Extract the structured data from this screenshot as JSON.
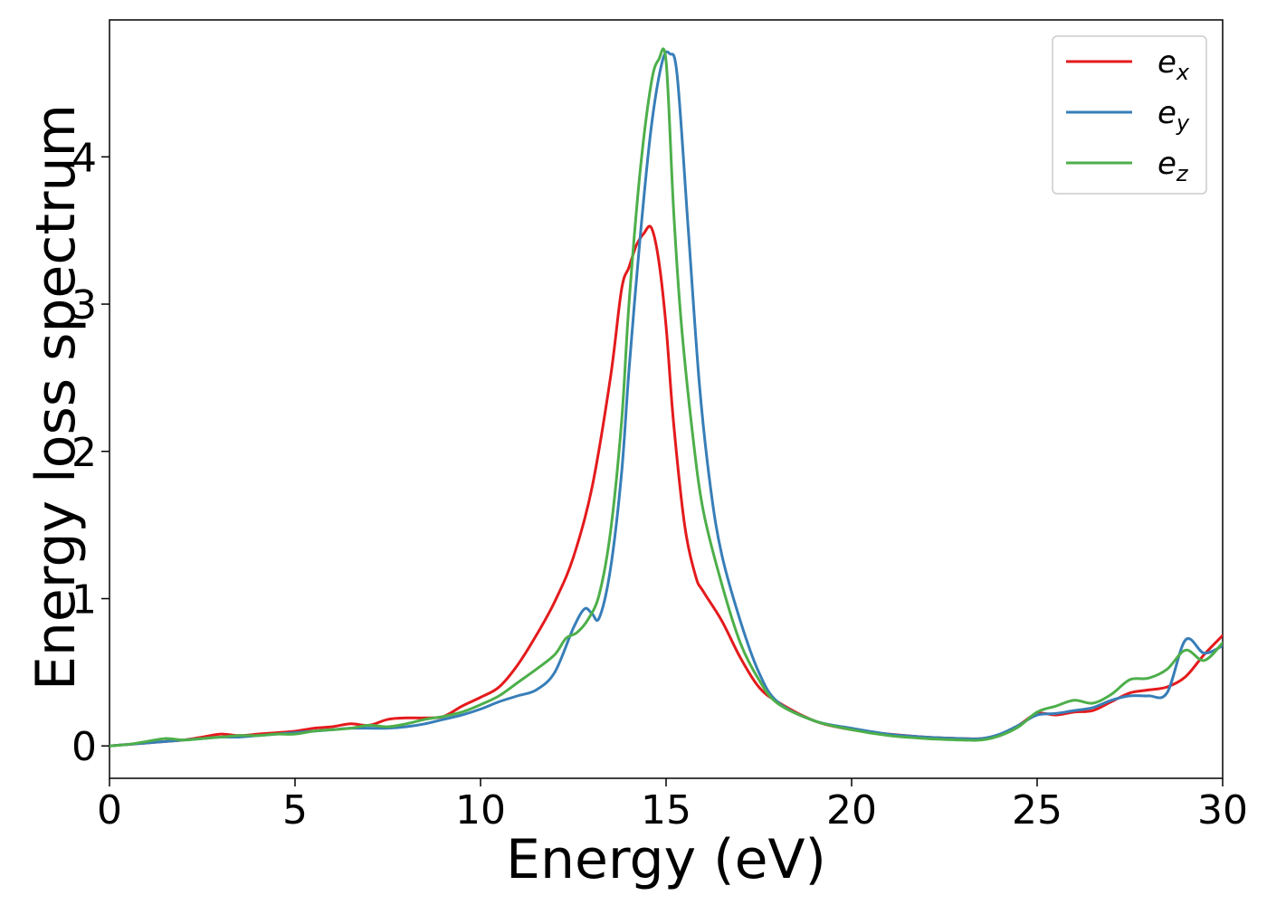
{
  "chart_data": {
    "type": "line",
    "title": "",
    "xlabel": "Energy (eV)",
    "ylabel": "Energy loss spectrum",
    "xlim": [
      0,
      30
    ],
    "ylim": [
      -0.22,
      4.93
    ],
    "xticks": [
      0,
      5,
      10,
      15,
      20,
      25,
      30
    ],
    "yticks": [
      0,
      1,
      2,
      3,
      4
    ],
    "grid": false,
    "legend_position": "top-right",
    "series": [
      {
        "name": "e_x",
        "label_main": "e",
        "label_sub": "x",
        "color": "#e41a1c",
        "x": [
          0,
          0.5,
          1,
          1.5,
          2,
          2.5,
          3,
          3.5,
          4,
          4.5,
          5,
          5.5,
          6,
          6.5,
          7,
          7.5,
          8,
          8.5,
          9,
          9.5,
          10,
          10.5,
          11,
          11.5,
          12,
          12.5,
          13,
          13.5,
          13.8,
          14,
          14.2,
          14.4,
          14.6,
          14.8,
          15,
          15.2,
          15.5,
          15.8,
          16,
          16.5,
          17,
          17.5,
          18,
          19,
          20,
          21,
          22,
          23,
          23.5,
          24,
          24.5,
          25,
          25.5,
          26,
          26.5,
          27,
          27.5,
          28,
          28.5,
          29,
          29.5,
          30
        ],
        "y": [
          0.0,
          0.01,
          0.02,
          0.03,
          0.04,
          0.06,
          0.08,
          0.07,
          0.08,
          0.09,
          0.1,
          0.12,
          0.13,
          0.15,
          0.14,
          0.18,
          0.19,
          0.19,
          0.2,
          0.27,
          0.33,
          0.4,
          0.55,
          0.75,
          0.98,
          1.28,
          1.75,
          2.5,
          3.1,
          3.25,
          3.4,
          3.48,
          3.52,
          3.3,
          2.85,
          2.2,
          1.5,
          1.15,
          1.05,
          0.85,
          0.6,
          0.4,
          0.3,
          0.17,
          0.11,
          0.08,
          0.06,
          0.05,
          0.05,
          0.07,
          0.14,
          0.22,
          0.21,
          0.23,
          0.24,
          0.3,
          0.36,
          0.38,
          0.4,
          0.47,
          0.62,
          0.75
        ]
      },
      {
        "name": "e_y",
        "label_main": "e",
        "label_sub": "y",
        "color": "#377eb8",
        "x": [
          0,
          0.5,
          1,
          1.5,
          2,
          2.5,
          3,
          3.5,
          4,
          4.5,
          5,
          5.5,
          6,
          6.5,
          7,
          7.5,
          8,
          8.5,
          9,
          9.5,
          10,
          10.5,
          11,
          11.5,
          12,
          12.5,
          12.8,
          13,
          13.2,
          13.5,
          13.8,
          14,
          14.3,
          14.6,
          14.9,
          15.1,
          15.3,
          15.6,
          15.9,
          16.2,
          16.5,
          17,
          17.5,
          18,
          19,
          20,
          21,
          22,
          23,
          23.5,
          24,
          24.5,
          25,
          25.5,
          26,
          26.5,
          27,
          27.5,
          28,
          28.5,
          29,
          29.5,
          30
        ],
        "y": [
          0.0,
          0.01,
          0.02,
          0.03,
          0.04,
          0.05,
          0.06,
          0.06,
          0.07,
          0.08,
          0.09,
          0.1,
          0.11,
          0.12,
          0.12,
          0.12,
          0.13,
          0.15,
          0.18,
          0.21,
          0.25,
          0.3,
          0.34,
          0.38,
          0.5,
          0.8,
          0.93,
          0.9,
          0.87,
          1.2,
          1.85,
          2.55,
          3.45,
          4.2,
          4.65,
          4.7,
          4.55,
          3.5,
          2.45,
          1.75,
          1.3,
          0.85,
          0.5,
          0.3,
          0.17,
          0.12,
          0.08,
          0.06,
          0.05,
          0.05,
          0.08,
          0.14,
          0.21,
          0.22,
          0.24,
          0.26,
          0.31,
          0.34,
          0.34,
          0.36,
          0.72,
          0.63,
          0.68
        ]
      },
      {
        "name": "e_z",
        "label_main": "e",
        "label_sub": "z",
        "color": "#4daf4a",
        "x": [
          0,
          0.5,
          1,
          1.5,
          2,
          2.5,
          3,
          3.5,
          4,
          4.5,
          5,
          5.5,
          6,
          6.5,
          7,
          7.5,
          8,
          8.5,
          9,
          9.5,
          10,
          10.5,
          11,
          11.5,
          12,
          12.3,
          12.6,
          12.9,
          13.2,
          13.5,
          13.8,
          14,
          14.3,
          14.6,
          14.8,
          15,
          15.2,
          15.4,
          15.7,
          16,
          16.5,
          17,
          17.5,
          18,
          19,
          20,
          21,
          22,
          23,
          23.5,
          24,
          24.5,
          25,
          25.5,
          26,
          26.5,
          27,
          27.5,
          28,
          28.5,
          29,
          29.5,
          30
        ],
        "y": [
          0.0,
          0.01,
          0.03,
          0.05,
          0.04,
          0.05,
          0.06,
          0.07,
          0.07,
          0.08,
          0.08,
          0.1,
          0.11,
          0.12,
          0.14,
          0.13,
          0.15,
          0.18,
          0.2,
          0.23,
          0.28,
          0.34,
          0.43,
          0.52,
          0.62,
          0.73,
          0.77,
          0.86,
          1.03,
          1.45,
          2.2,
          3.0,
          3.9,
          4.5,
          4.66,
          4.65,
          3.65,
          2.9,
          2.15,
          1.6,
          1.1,
          0.7,
          0.45,
          0.29,
          0.17,
          0.11,
          0.07,
          0.05,
          0.04,
          0.04,
          0.07,
          0.13,
          0.23,
          0.27,
          0.31,
          0.29,
          0.35,
          0.45,
          0.46,
          0.52,
          0.65,
          0.58,
          0.7
        ]
      }
    ]
  }
}
